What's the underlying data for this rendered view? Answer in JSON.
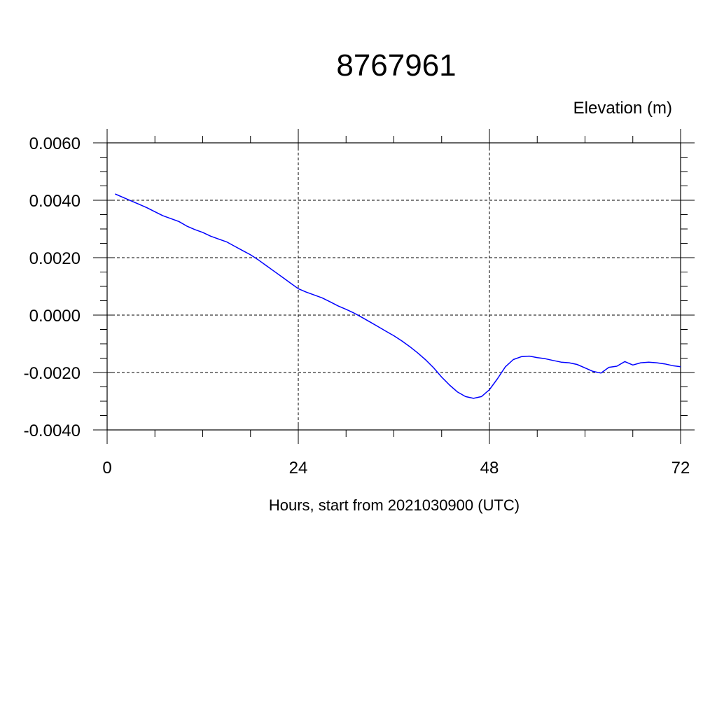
{
  "chart_data": {
    "type": "line",
    "title": "8767961",
    "ylabel": "Elevation (m)",
    "xlabel": "Hours, start from 2021030900 (UTC)",
    "xlim": [
      0,
      72
    ],
    "ylim": [
      -0.004,
      0.006
    ],
    "xticks": [
      0,
      24,
      48,
      72
    ],
    "xtick_labels": [
      "0",
      "24",
      "48",
      "72"
    ],
    "yticks": [
      -0.004,
      -0.002,
      0.0,
      0.002,
      0.004,
      0.006
    ],
    "ytick_labels": [
      "-0.0040",
      "-0.0020",
      "0.0000",
      "0.0020",
      "0.0040",
      "0.0060"
    ],
    "grid": true,
    "line_color": "#0000ff",
    "series": [
      {
        "x": [
          1,
          2,
          3,
          4,
          5,
          6,
          7,
          8,
          9,
          10,
          11,
          12,
          13,
          14,
          15,
          16,
          17,
          18,
          19,
          20,
          21,
          22,
          23,
          24,
          25,
          26,
          27,
          28,
          29,
          30,
          31,
          32,
          33,
          34,
          35,
          36,
          37,
          38,
          39,
          40,
          41,
          42,
          43,
          44,
          45,
          46,
          47,
          48,
          49,
          50,
          51,
          52,
          53,
          54,
          55,
          56,
          57,
          58,
          59,
          60,
          61,
          62,
          63,
          64,
          65,
          66,
          67,
          68,
          69,
          70,
          71,
          72
        ],
        "values": [
          0.00422,
          0.0041,
          0.00398,
          0.00386,
          0.00374,
          0.0036,
          0.00346,
          0.00336,
          0.00326,
          0.0031,
          0.00298,
          0.00288,
          0.00275,
          0.00265,
          0.00255,
          0.0024,
          0.00225,
          0.0021,
          0.00192,
          0.00172,
          0.00152,
          0.00132,
          0.00112,
          0.00092,
          0.0008,
          0.0007,
          0.0006,
          0.00046,
          0.00032,
          0.0002,
          7e-05,
          -8e-05,
          -0.00024,
          -0.0004,
          -0.00056,
          -0.00072,
          -0.0009,
          -0.0011,
          -0.00132,
          -0.00156,
          -0.00184,
          -0.00216,
          -0.00244,
          -0.00268,
          -0.00284,
          -0.0029,
          -0.00284,
          -0.0026,
          -0.00222,
          -0.0018,
          -0.00155,
          -0.00145,
          -0.00143,
          -0.00148,
          -0.00152,
          -0.00158,
          -0.00164,
          -0.00166,
          -0.00172,
          -0.00184,
          -0.00196,
          -0.00202,
          -0.00182,
          -0.00178,
          -0.00162,
          -0.00174,
          -0.00166,
          -0.00164,
          -0.00166,
          -0.0017,
          -0.00176,
          -0.0018
        ]
      }
    ]
  }
}
